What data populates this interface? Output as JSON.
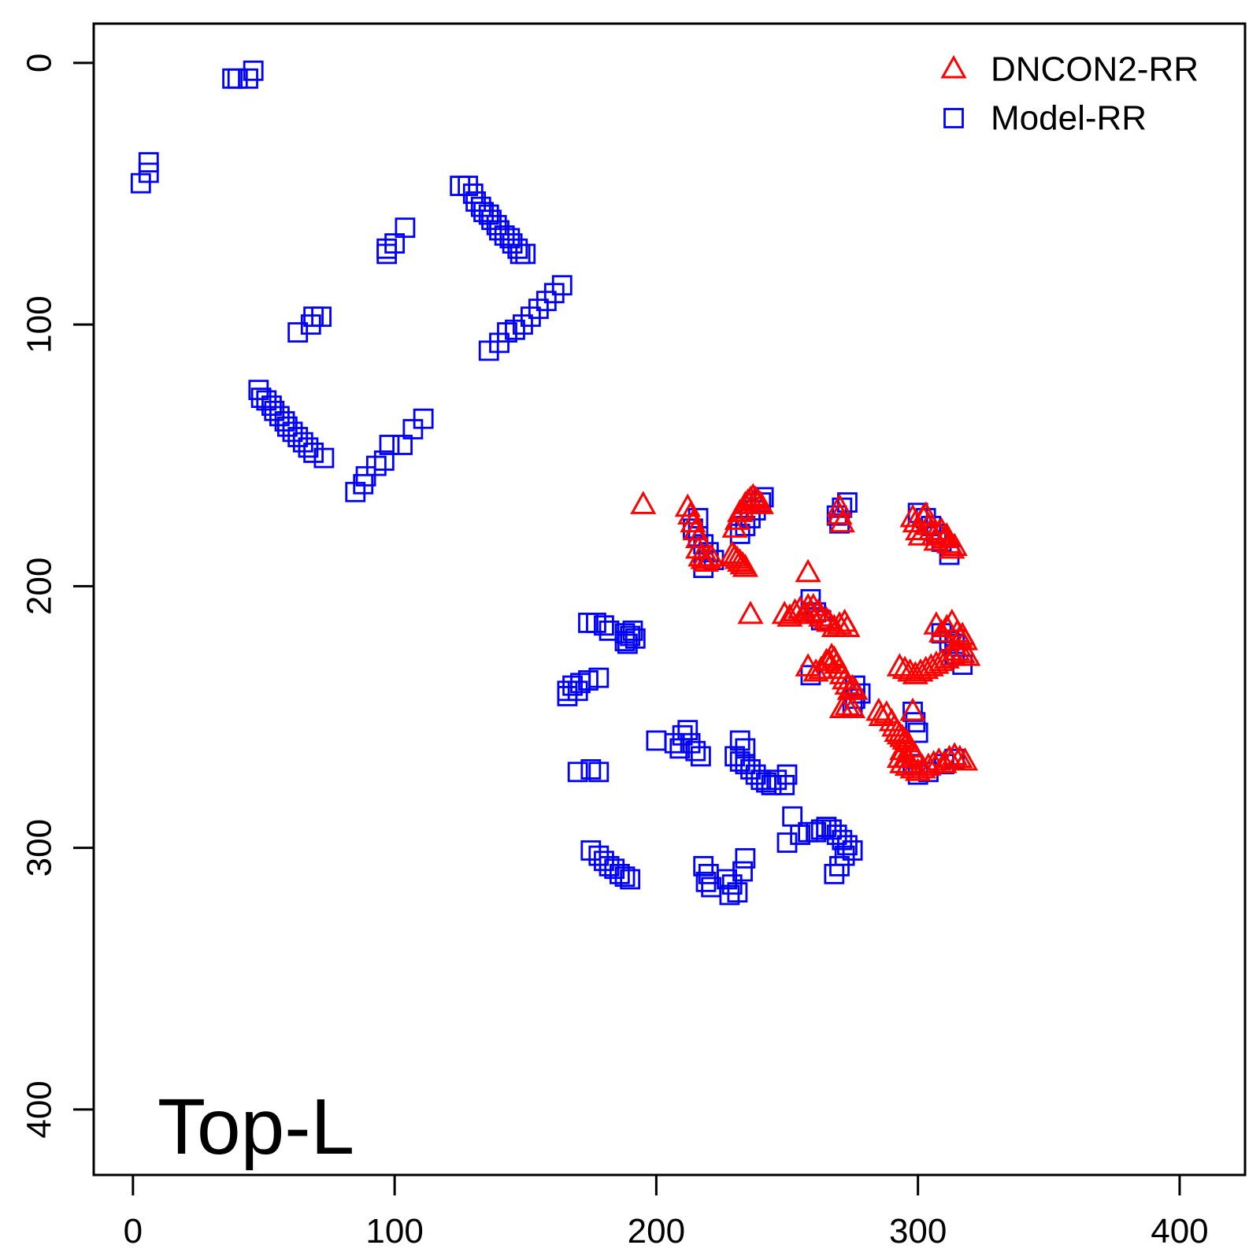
{
  "chart_data": {
    "type": "scatter",
    "corner_label": "Top-L",
    "xlim": [
      -15,
      425
    ],
    "ylim": [
      -15,
      425
    ],
    "y_axis_inverted": true,
    "x_ticks": [
      0,
      100,
      200,
      300,
      400
    ],
    "y_ticks": [
      0,
      100,
      200,
      300,
      400
    ],
    "legend_position": "top-right",
    "series": [
      {
        "name": "DNCON2-RR",
        "marker": "triangle",
        "color": "#ff0000",
        "points": [
          [
            195,
            169
          ],
          [
            212,
            170
          ],
          [
            213,
            173
          ],
          [
            214,
            176
          ],
          [
            215,
            179
          ],
          [
            216,
            182
          ],
          [
            216,
            186
          ],
          [
            217,
            189
          ],
          [
            218,
            190
          ],
          [
            219,
            191
          ],
          [
            220,
            190
          ],
          [
            221,
            189
          ],
          [
            229,
            188
          ],
          [
            230,
            189
          ],
          [
            231,
            190
          ],
          [
            232,
            191
          ],
          [
            233,
            192
          ],
          [
            234,
            193
          ],
          [
            230,
            178
          ],
          [
            231,
            175
          ],
          [
            232,
            172
          ],
          [
            233,
            171
          ],
          [
            234,
            169
          ],
          [
            235,
            168
          ],
          [
            236,
            167
          ],
          [
            237,
            166
          ],
          [
            238,
            167
          ],
          [
            239,
            168
          ],
          [
            240,
            169
          ],
          [
            258,
            195
          ],
          [
            270,
            170
          ],
          [
            270,
            173
          ],
          [
            271,
            176
          ],
          [
            236,
            211
          ],
          [
            249,
            211
          ],
          [
            251,
            212
          ],
          [
            253,
            210
          ],
          [
            255,
            209
          ],
          [
            257,
            211
          ],
          [
            258,
            208
          ],
          [
            259,
            211
          ],
          [
            260,
            208
          ],
          [
            262,
            210
          ],
          [
            263,
            212
          ],
          [
            265,
            213
          ],
          [
            266,
            214
          ],
          [
            268,
            216
          ],
          [
            270,
            215
          ],
          [
            272,
            214
          ],
          [
            273,
            216
          ],
          [
            258,
            231
          ],
          [
            261,
            233
          ],
          [
            263,
            232
          ],
          [
            265,
            229
          ],
          [
            266,
            229
          ],
          [
            267,
            227
          ],
          [
            268,
            228
          ],
          [
            269,
            230
          ],
          [
            270,
            232
          ],
          [
            271,
            234
          ],
          [
            272,
            236
          ],
          [
            273,
            238
          ],
          [
            274,
            240
          ],
          [
            275,
            239
          ],
          [
            276,
            240
          ],
          [
            271,
            247
          ],
          [
            273,
            246
          ],
          [
            275,
            247
          ],
          [
            298,
            174
          ],
          [
            299,
            176
          ],
          [
            300,
            179
          ],
          [
            301,
            181
          ],
          [
            302,
            174
          ],
          [
            303,
            173
          ],
          [
            304,
            177
          ],
          [
            305,
            179
          ],
          [
            306,
            181
          ],
          [
            307,
            183
          ],
          [
            308,
            180
          ],
          [
            309,
            179
          ],
          [
            310,
            182
          ],
          [
            311,
            181
          ],
          [
            312,
            184
          ],
          [
            313,
            186
          ],
          [
            314,
            185
          ],
          [
            307,
            215
          ],
          [
            309,
            218
          ],
          [
            311,
            216
          ],
          [
            313,
            214
          ],
          [
            315,
            218
          ],
          [
            316,
            220
          ],
          [
            317,
            219
          ],
          [
            318,
            221
          ],
          [
            319,
            227
          ],
          [
            317,
            226
          ],
          [
            315,
            225
          ],
          [
            313,
            227
          ],
          [
            311,
            228
          ],
          [
            309,
            229
          ],
          [
            307,
            230
          ],
          [
            305,
            231
          ],
          [
            303,
            232
          ],
          [
            301,
            233
          ],
          [
            299,
            234
          ],
          [
            297,
            233
          ],
          [
            295,
            232
          ],
          [
            293,
            231
          ],
          [
            285,
            248
          ],
          [
            286,
            250
          ],
          [
            288,
            249
          ],
          [
            290,
            252
          ],
          [
            291,
            254
          ],
          [
            292,
            256
          ],
          [
            293,
            257
          ],
          [
            294,
            258
          ],
          [
            295,
            259
          ],
          [
            296,
            260
          ],
          [
            297,
            262
          ],
          [
            298,
            264
          ],
          [
            299,
            265
          ],
          [
            298,
            248
          ],
          [
            293,
            266
          ],
          [
            294,
            268
          ],
          [
            296,
            269
          ],
          [
            298,
            270
          ],
          [
            300,
            271
          ],
          [
            302,
            270
          ],
          [
            304,
            269
          ],
          [
            306,
            268
          ],
          [
            308,
            267
          ],
          [
            310,
            268
          ],
          [
            312,
            266
          ],
          [
            314,
            265
          ],
          [
            316,
            266
          ],
          [
            318,
            267
          ],
          [
            294,
            263
          ],
          [
            296,
            266
          ]
        ]
      },
      {
        "name": "Model-RR",
        "marker": "square",
        "color": "#0000ff",
        "points": [
          [
            46,
            3
          ],
          [
            44,
            6
          ],
          [
            40,
            6
          ],
          [
            38,
            6
          ],
          [
            6,
            38
          ],
          [
            6,
            42
          ],
          [
            3,
            46
          ],
          [
            125,
            47
          ],
          [
            128,
            47
          ],
          [
            130,
            50
          ],
          [
            131,
            53
          ],
          [
            133,
            55
          ],
          [
            134,
            57
          ],
          [
            136,
            58
          ],
          [
            137,
            60
          ],
          [
            139,
            62
          ],
          [
            140,
            64
          ],
          [
            142,
            66
          ],
          [
            144,
            67
          ],
          [
            145,
            69
          ],
          [
            147,
            71
          ],
          [
            148,
            73
          ],
          [
            150,
            73
          ],
          [
            104,
            63
          ],
          [
            100,
            69
          ],
          [
            97,
            71
          ],
          [
            97,
            73
          ],
          [
            164,
            85
          ],
          [
            161,
            88
          ],
          [
            158,
            91
          ],
          [
            155,
            94
          ],
          [
            152,
            97
          ],
          [
            149,
            100
          ],
          [
            146,
            102
          ],
          [
            143,
            103
          ],
          [
            140,
            107
          ],
          [
            136,
            110
          ],
          [
            72,
            97
          ],
          [
            69,
            97
          ],
          [
            68,
            100
          ],
          [
            63,
            103
          ],
          [
            48,
            125
          ],
          [
            49,
            128
          ],
          [
            51,
            129
          ],
          [
            53,
            131
          ],
          [
            54,
            133
          ],
          [
            56,
            135
          ],
          [
            58,
            137
          ],
          [
            59,
            139
          ],
          [
            61,
            141
          ],
          [
            63,
            143
          ],
          [
            65,
            145
          ],
          [
            67,
            147
          ],
          [
            69,
            149
          ],
          [
            73,
            151
          ],
          [
            111,
            136
          ],
          [
            107,
            140
          ],
          [
            103,
            146
          ],
          [
            98,
            146
          ],
          [
            96,
            152
          ],
          [
            93,
            154
          ],
          [
            89,
            158
          ],
          [
            88,
            161
          ],
          [
            85,
            164
          ],
          [
            241,
            166
          ],
          [
            240,
            168
          ],
          [
            238,
            171
          ],
          [
            236,
            174
          ],
          [
            234,
            177
          ],
          [
            232,
            180
          ],
          [
            216,
            174
          ],
          [
            214,
            178
          ],
          [
            216,
            181
          ],
          [
            218,
            184
          ],
          [
            220,
            187
          ],
          [
            222,
            190
          ],
          [
            218,
            193
          ],
          [
            273,
            168
          ],
          [
            271,
            170
          ],
          [
            269,
            173
          ],
          [
            270,
            176
          ],
          [
            300,
            172
          ],
          [
            303,
            174
          ],
          [
            305,
            177
          ],
          [
            307,
            180
          ],
          [
            309,
            183
          ],
          [
            312,
            188
          ],
          [
            177,
            214
          ],
          [
            174,
            214
          ],
          [
            180,
            215
          ],
          [
            182,
            217
          ],
          [
            188,
            218
          ],
          [
            190,
            219
          ],
          [
            192,
            220
          ],
          [
            189,
            222
          ],
          [
            191,
            217
          ],
          [
            188,
            221
          ],
          [
            178,
            235
          ],
          [
            174,
            236
          ],
          [
            171,
            237
          ],
          [
            168,
            238
          ],
          [
            166,
            240
          ],
          [
            166,
            242
          ],
          [
            170,
            240
          ],
          [
            259,
            205
          ],
          [
            261,
            210
          ],
          [
            263,
            213
          ],
          [
            259,
            234
          ],
          [
            276,
            238
          ],
          [
            278,
            241
          ],
          [
            276,
            243
          ],
          [
            275,
            246
          ],
          [
            309,
            218
          ],
          [
            312,
            221
          ],
          [
            314,
            226
          ],
          [
            317,
            230
          ],
          [
            314,
            222
          ],
          [
            298,
            248
          ],
          [
            299,
            252
          ],
          [
            300,
            256
          ],
          [
            298,
            268
          ],
          [
            300,
            272
          ],
          [
            304,
            271
          ],
          [
            310,
            268
          ],
          [
            314,
            266
          ],
          [
            200,
            259
          ],
          [
            207,
            260
          ],
          [
            210,
            257
          ],
          [
            212,
            255
          ],
          [
            213,
            260
          ],
          [
            215,
            263
          ],
          [
            217,
            265
          ],
          [
            209,
            262
          ],
          [
            232,
            259
          ],
          [
            234,
            262
          ],
          [
            230,
            265
          ],
          [
            232,
            267
          ],
          [
            234,
            268
          ],
          [
            236,
            270
          ],
          [
            238,
            272
          ],
          [
            240,
            274
          ],
          [
            242,
            275
          ],
          [
            244,
            276
          ],
          [
            246,
            274
          ],
          [
            249,
            276
          ],
          [
            250,
            272
          ],
          [
            170,
            271
          ],
          [
            175,
            270
          ],
          [
            178,
            271
          ],
          [
            175,
            301
          ],
          [
            178,
            303
          ],
          [
            180,
            305
          ],
          [
            182,
            307
          ],
          [
            184,
            308
          ],
          [
            186,
            310
          ],
          [
            188,
            311
          ],
          [
            190,
            312
          ],
          [
            218,
            307
          ],
          [
            220,
            310
          ],
          [
            219,
            313
          ],
          [
            221,
            315
          ],
          [
            227,
            312
          ],
          [
            229,
            314
          ],
          [
            228,
            318
          ],
          [
            231,
            317
          ],
          [
            233,
            309
          ],
          [
            234,
            304
          ],
          [
            252,
            288
          ],
          [
            250,
            298
          ],
          [
            255,
            295
          ],
          [
            258,
            294
          ],
          [
            261,
            294
          ],
          [
            263,
            293
          ],
          [
            265,
            292
          ],
          [
            267,
            293
          ],
          [
            269,
            295
          ],
          [
            271,
            297
          ],
          [
            273,
            299
          ],
          [
            275,
            301
          ],
          [
            272,
            303
          ],
          [
            270,
            307
          ],
          [
            268,
            310
          ]
        ]
      }
    ]
  }
}
